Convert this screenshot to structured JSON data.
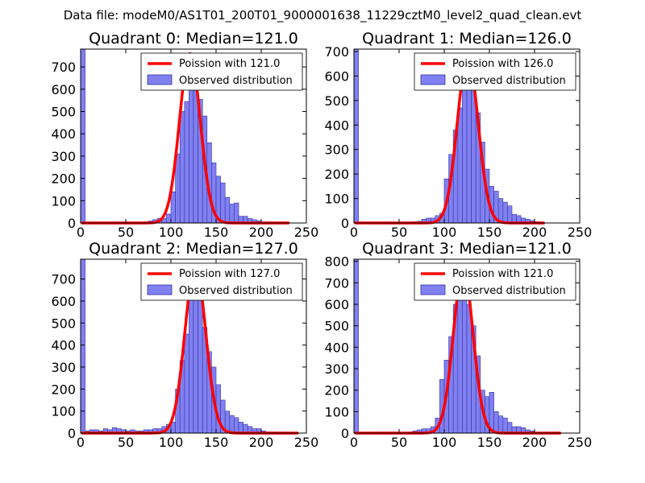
{
  "suptitle": "Data file: modeM0/AS1T01_200T01_9000001638_11229cztM0_level2_quad_clean.evt",
  "colors": {
    "bar_fill": "#8080f0",
    "bar_edge": "#3333aa",
    "line": "#ff0000",
    "axes": "#000000"
  },
  "chart_data": [
    {
      "type": "bar",
      "title": "Quadrant 0: Median=121.0",
      "xlim": [
        0,
        250
      ],
      "ylim": [
        0,
        780
      ],
      "xticks": [
        0,
        50,
        100,
        150,
        200,
        250
      ],
      "yticks": [
        0,
        100,
        200,
        300,
        400,
        500,
        600,
        700
      ],
      "legend": {
        "position": "top-right",
        "line_label": "Poission with 121.0",
        "bar_label": "Observed distribution"
      },
      "bin_width": 5,
      "bins": [
        {
          "x": 0,
          "v": 780
        },
        {
          "x": 40,
          "v": 4
        },
        {
          "x": 45,
          "v": 2
        },
        {
          "x": 55,
          "v": 2
        },
        {
          "x": 60,
          "v": 3
        },
        {
          "x": 65,
          "v": 4
        },
        {
          "x": 70,
          "v": 5
        },
        {
          "x": 75,
          "v": 9
        },
        {
          "x": 80,
          "v": 15
        },
        {
          "x": 85,
          "v": 20
        },
        {
          "x": 90,
          "v": 20
        },
        {
          "x": 95,
          "v": 40
        },
        {
          "x": 100,
          "v": 140
        },
        {
          "x": 105,
          "v": 310
        },
        {
          "x": 110,
          "v": 500
        },
        {
          "x": 115,
          "v": 545
        },
        {
          "x": 120,
          "v": 700
        },
        {
          "x": 125,
          "v": 640
        },
        {
          "x": 130,
          "v": 555
        },
        {
          "x": 135,
          "v": 480
        },
        {
          "x": 140,
          "v": 360
        },
        {
          "x": 145,
          "v": 270
        },
        {
          "x": 150,
          "v": 210
        },
        {
          "x": 155,
          "v": 180
        },
        {
          "x": 160,
          "v": 115
        },
        {
          "x": 165,
          "v": 85
        },
        {
          "x": 170,
          "v": 90
        },
        {
          "x": 175,
          "v": 30
        },
        {
          "x": 180,
          "v": 30
        },
        {
          "x": 185,
          "v": 20
        },
        {
          "x": 190,
          "v": 15
        },
        {
          "x": 195,
          "v": 10
        },
        {
          "x": 200,
          "v": 3
        }
      ],
      "poisson": {
        "mean": 121.0,
        "peak": 760,
        "sigma": 11.5,
        "x_range": [
          2,
          230
        ]
      }
    },
    {
      "type": "bar",
      "title": "Quadrant 1: Median=126.0",
      "xlim": [
        0,
        250
      ],
      "ylim": [
        0,
        710
      ],
      "xticks": [
        0,
        50,
        100,
        150,
        200,
        250
      ],
      "yticks": [
        0,
        100,
        200,
        300,
        400,
        500,
        600,
        700
      ],
      "legend": {
        "position": "top-right",
        "line_label": "Poission with 126.0",
        "bar_label": "Observed distribution"
      },
      "bin_width": 5,
      "bins": [
        {
          "x": 0,
          "v": 710
        },
        {
          "x": 45,
          "v": 2
        },
        {
          "x": 55,
          "v": 3
        },
        {
          "x": 60,
          "v": 3
        },
        {
          "x": 65,
          "v": 5
        },
        {
          "x": 70,
          "v": 7
        },
        {
          "x": 75,
          "v": 15
        },
        {
          "x": 80,
          "v": 20
        },
        {
          "x": 85,
          "v": 20
        },
        {
          "x": 90,
          "v": 30
        },
        {
          "x": 95,
          "v": 40
        },
        {
          "x": 100,
          "v": 180
        },
        {
          "x": 105,
          "v": 280
        },
        {
          "x": 110,
          "v": 380
        },
        {
          "x": 115,
          "v": 470
        },
        {
          "x": 120,
          "v": 550
        },
        {
          "x": 125,
          "v": 650
        },
        {
          "x": 130,
          "v": 620
        },
        {
          "x": 135,
          "v": 450
        },
        {
          "x": 140,
          "v": 330
        },
        {
          "x": 145,
          "v": 220
        },
        {
          "x": 150,
          "v": 150
        },
        {
          "x": 155,
          "v": 130
        },
        {
          "x": 160,
          "v": 100
        },
        {
          "x": 165,
          "v": 85
        },
        {
          "x": 170,
          "v": 70
        },
        {
          "x": 175,
          "v": 35
        },
        {
          "x": 180,
          "v": 30
        },
        {
          "x": 185,
          "v": 20
        },
        {
          "x": 190,
          "v": 15
        },
        {
          "x": 195,
          "v": 10
        },
        {
          "x": 200,
          "v": 5
        }
      ],
      "poisson": {
        "mean": 126.0,
        "peak": 680,
        "sigma": 11.5,
        "x_range": [
          2,
          210
        ]
      }
    },
    {
      "type": "bar",
      "title": "Quadrant 2: Median=127.0",
      "xlim": [
        0,
        250
      ],
      "ylim": [
        0,
        790
      ],
      "xticks": [
        0,
        50,
        100,
        150,
        200,
        250
      ],
      "yticks": [
        0,
        100,
        200,
        300,
        400,
        500,
        600,
        700
      ],
      "legend": {
        "position": "top-right",
        "line_label": "Poission with 127.0",
        "bar_label": "Observed distribution"
      },
      "bin_width": 5,
      "bins": [
        {
          "x": 0,
          "v": 790
        },
        {
          "x": 5,
          "v": 10
        },
        {
          "x": 10,
          "v": 15
        },
        {
          "x": 15,
          "v": 15
        },
        {
          "x": 20,
          "v": 10
        },
        {
          "x": 25,
          "v": 20
        },
        {
          "x": 30,
          "v": 15
        },
        {
          "x": 35,
          "v": 25
        },
        {
          "x": 40,
          "v": 20
        },
        {
          "x": 45,
          "v": 15
        },
        {
          "x": 50,
          "v": 10
        },
        {
          "x": 55,
          "v": 15
        },
        {
          "x": 60,
          "v": 10
        },
        {
          "x": 65,
          "v": 10
        },
        {
          "x": 70,
          "v": 15
        },
        {
          "x": 75,
          "v": 15
        },
        {
          "x": 80,
          "v": 20
        },
        {
          "x": 85,
          "v": 20
        },
        {
          "x": 90,
          "v": 30
        },
        {
          "x": 95,
          "v": 40
        },
        {
          "x": 100,
          "v": 50
        },
        {
          "x": 105,
          "v": 200
        },
        {
          "x": 110,
          "v": 330
        },
        {
          "x": 115,
          "v": 450
        },
        {
          "x": 120,
          "v": 650
        },
        {
          "x": 125,
          "v": 760
        },
        {
          "x": 130,
          "v": 660
        },
        {
          "x": 135,
          "v": 480
        },
        {
          "x": 140,
          "v": 370
        },
        {
          "x": 145,
          "v": 300
        },
        {
          "x": 150,
          "v": 220
        },
        {
          "x": 155,
          "v": 150
        },
        {
          "x": 160,
          "v": 100
        },
        {
          "x": 165,
          "v": 80
        },
        {
          "x": 170,
          "v": 70
        },
        {
          "x": 175,
          "v": 50
        },
        {
          "x": 180,
          "v": 40
        },
        {
          "x": 185,
          "v": 30
        },
        {
          "x": 190,
          "v": 20
        },
        {
          "x": 195,
          "v": 20
        },
        {
          "x": 200,
          "v": 10
        },
        {
          "x": 205,
          "v": 5
        },
        {
          "x": 210,
          "v": 5
        }
      ],
      "poisson": {
        "mean": 127.0,
        "peak": 760,
        "sigma": 11.5,
        "x_range": [
          2,
          240
        ]
      }
    },
    {
      "type": "bar",
      "title": "Quadrant 3: Median=121.0",
      "xlim": [
        0,
        250
      ],
      "ylim": [
        0,
        810
      ],
      "xticks": [
        0,
        50,
        100,
        150,
        200,
        250
      ],
      "yticks": [
        0,
        100,
        200,
        300,
        400,
        500,
        600,
        700,
        800
      ],
      "legend": {
        "position": "top-right",
        "line_label": "Poission with 121.0",
        "bar_label": "Observed distribution"
      },
      "bin_width": 5,
      "bins": [
        {
          "x": 0,
          "v": 810
        },
        {
          "x": 50,
          "v": 3
        },
        {
          "x": 55,
          "v": 2
        },
        {
          "x": 60,
          "v": 5
        },
        {
          "x": 65,
          "v": 10
        },
        {
          "x": 70,
          "v": 15
        },
        {
          "x": 75,
          "v": 20
        },
        {
          "x": 80,
          "v": 20
        },
        {
          "x": 85,
          "v": 30
        },
        {
          "x": 90,
          "v": 70
        },
        {
          "x": 95,
          "v": 250
        },
        {
          "x": 100,
          "v": 340
        },
        {
          "x": 105,
          "v": 450
        },
        {
          "x": 110,
          "v": 600
        },
        {
          "x": 115,
          "v": 760
        },
        {
          "x": 120,
          "v": 720
        },
        {
          "x": 125,
          "v": 600
        },
        {
          "x": 130,
          "v": 500
        },
        {
          "x": 135,
          "v": 360
        },
        {
          "x": 140,
          "v": 200
        },
        {
          "x": 145,
          "v": 170
        },
        {
          "x": 150,
          "v": 190
        },
        {
          "x": 155,
          "v": 100
        },
        {
          "x": 160,
          "v": 80
        },
        {
          "x": 165,
          "v": 70
        },
        {
          "x": 170,
          "v": 50
        },
        {
          "x": 175,
          "v": 30
        },
        {
          "x": 180,
          "v": 30
        },
        {
          "x": 185,
          "v": 25
        },
        {
          "x": 190,
          "v": 15
        },
        {
          "x": 195,
          "v": 10
        }
      ],
      "poisson": {
        "mean": 121.0,
        "peak": 760,
        "sigma": 11.0,
        "x_range": [
          2,
          228
        ]
      }
    }
  ]
}
